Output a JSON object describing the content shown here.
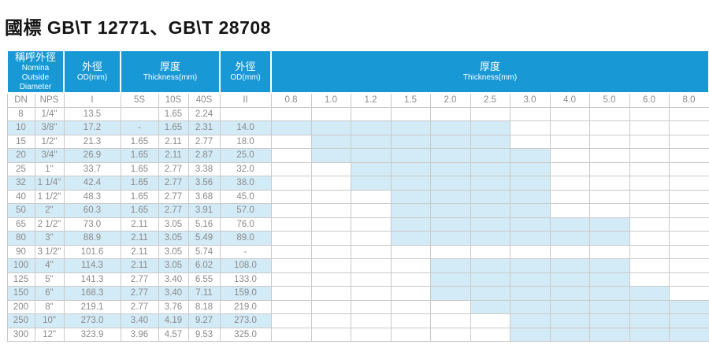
{
  "title": "國標 GB\\T 12771、GB\\T 28708",
  "colors": {
    "header_blue": "#1898d5",
    "highlight_blue": "#d3ebf7",
    "grid_gray": "#c9c9c9",
    "text_gray": "#8a8a8a",
    "title_black": "#151515"
  },
  "table": {
    "groups": [
      {
        "lines": [
          "稱呼外徑",
          "Nomina",
          "Outside Diameter"
        ],
        "span": 2
      },
      {
        "lines": [
          "外徑",
          "OD(mm)"
        ],
        "span": 1
      },
      {
        "lines": [
          "厚度",
          "Thickness(mm)"
        ],
        "span": 3
      },
      {
        "lines": [
          "外徑",
          "OD(mm)"
        ],
        "span": 1
      },
      {
        "lines": [
          "厚度",
          "Thickness(mm)"
        ],
        "span": 11
      }
    ],
    "sub_left": [
      "DN",
      "NPS",
      "I",
      "5S",
      "10S",
      "40S",
      "II"
    ],
    "thickness_columns": [
      "0.8",
      "1.0",
      "1.2",
      "1.5",
      "2.0",
      "2.5",
      "3.0",
      "4.0",
      "5.0",
      "6.0",
      "8.0"
    ],
    "rows": [
      {
        "dn": "8",
        "nps": "1/4\"",
        "od1": "13.5",
        "t5s": "",
        "t10s": "1.65",
        "t40s": "2.24",
        "od2": "",
        "avail_min": "",
        "avail_max": ""
      },
      {
        "dn": "10",
        "nps": "3/8\"",
        "od1": "17.2",
        "t5s": "-",
        "t10s": "1.65",
        "t40s": "2.31",
        "od2": "14.0",
        "avail_min": "0.8",
        "avail_max": "2.5"
      },
      {
        "dn": "15",
        "nps": "1/2\"",
        "od1": "21.3",
        "t5s": "1.65",
        "t10s": "2.11",
        "t40s": "2.77",
        "od2": "18.0",
        "avail_min": "1.0",
        "avail_max": "2.5"
      },
      {
        "dn": "20",
        "nps": "3/4\"",
        "od1": "26.9",
        "t5s": "1.65",
        "t10s": "2.11",
        "t40s": "2.87",
        "od2": "25.0",
        "avail_min": "1.0",
        "avail_max": "3.0"
      },
      {
        "dn": "25",
        "nps": "1\"",
        "od1": "33.7",
        "t5s": "1.65",
        "t10s": "2.77",
        "t40s": "3.38",
        "od2": "32.0",
        "avail_min": "1.2",
        "avail_max": "3.0"
      },
      {
        "dn": "32",
        "nps": "1 1/4\"",
        "od1": "42.4",
        "t5s": "1.65",
        "t10s": "2.77",
        "t40s": "3.56",
        "od2": "38.0",
        "avail_min": "1.2",
        "avail_max": "3.0"
      },
      {
        "dn": "40",
        "nps": "1 1/2\"",
        "od1": "48.3",
        "t5s": "1.65",
        "t10s": "2.77",
        "t40s": "3.68",
        "od2": "45.0",
        "avail_min": "1.5",
        "avail_max": "3.0"
      },
      {
        "dn": "50",
        "nps": "2\"",
        "od1": "60.3",
        "t5s": "1.65",
        "t10s": "2.77",
        "t40s": "3.91",
        "od2": "57.0",
        "avail_min": "1.5",
        "avail_max": "3.0"
      },
      {
        "dn": "65",
        "nps": "2 1/2\"",
        "od1": "73.0",
        "t5s": "2.11",
        "t10s": "3.05",
        "t40s": "5.16",
        "od2": "76.0",
        "avail_min": "1.5",
        "avail_max": "5.0"
      },
      {
        "dn": "80",
        "nps": "3\"",
        "od1": "88.9",
        "t5s": "2.11",
        "t10s": "3.05",
        "t40s": "5.49",
        "od2": "89.0",
        "avail_min": "1.5",
        "avail_max": "5.0"
      },
      {
        "dn": "90",
        "nps": "3 1/2\"",
        "od1": "101.6",
        "t5s": "2.11",
        "t10s": "3.05",
        "t40s": "5.74",
        "od2": "-",
        "avail_min": "",
        "avail_max": ""
      },
      {
        "dn": "100",
        "nps": "4\"",
        "od1": "114.3",
        "t5s": "2.11",
        "t10s": "3.05",
        "t40s": "6.02",
        "od2": "108.0",
        "avail_min": "2.0",
        "avail_max": "5.0"
      },
      {
        "dn": "125",
        "nps": "5\"",
        "od1": "141.3",
        "t5s": "2.77",
        "t10s": "3.40",
        "t40s": "6.55",
        "od2": "133.0",
        "avail_min": "2.0",
        "avail_max": "5.0"
      },
      {
        "dn": "150",
        "nps": "6\"",
        "od1": "168.3",
        "t5s": "2.77",
        "t10s": "3.40",
        "t40s": "7.11",
        "od2": "159.0",
        "avail_min": "2.0",
        "avail_max": "6.0"
      },
      {
        "dn": "200",
        "nps": "8\"",
        "od1": "219.1",
        "t5s": "2.77",
        "t10s": "3.76",
        "t40s": "8.18",
        "od2": "219.0",
        "avail_min": "2.5",
        "avail_max": "8.0"
      },
      {
        "dn": "250",
        "nps": "10\"",
        "od1": "273.0",
        "t5s": "3.40",
        "t10s": "4.19",
        "t40s": "9.27",
        "od2": "273.0",
        "avail_min": "3.0",
        "avail_max": "8.0"
      },
      {
        "dn": "300",
        "nps": "12\"",
        "od1": "323.9",
        "t5s": "3.96",
        "t10s": "4.57",
        "t40s": "9.53",
        "od2": "325.0",
        "avail_min": "3.0",
        "avail_max": "8.0"
      }
    ]
  }
}
